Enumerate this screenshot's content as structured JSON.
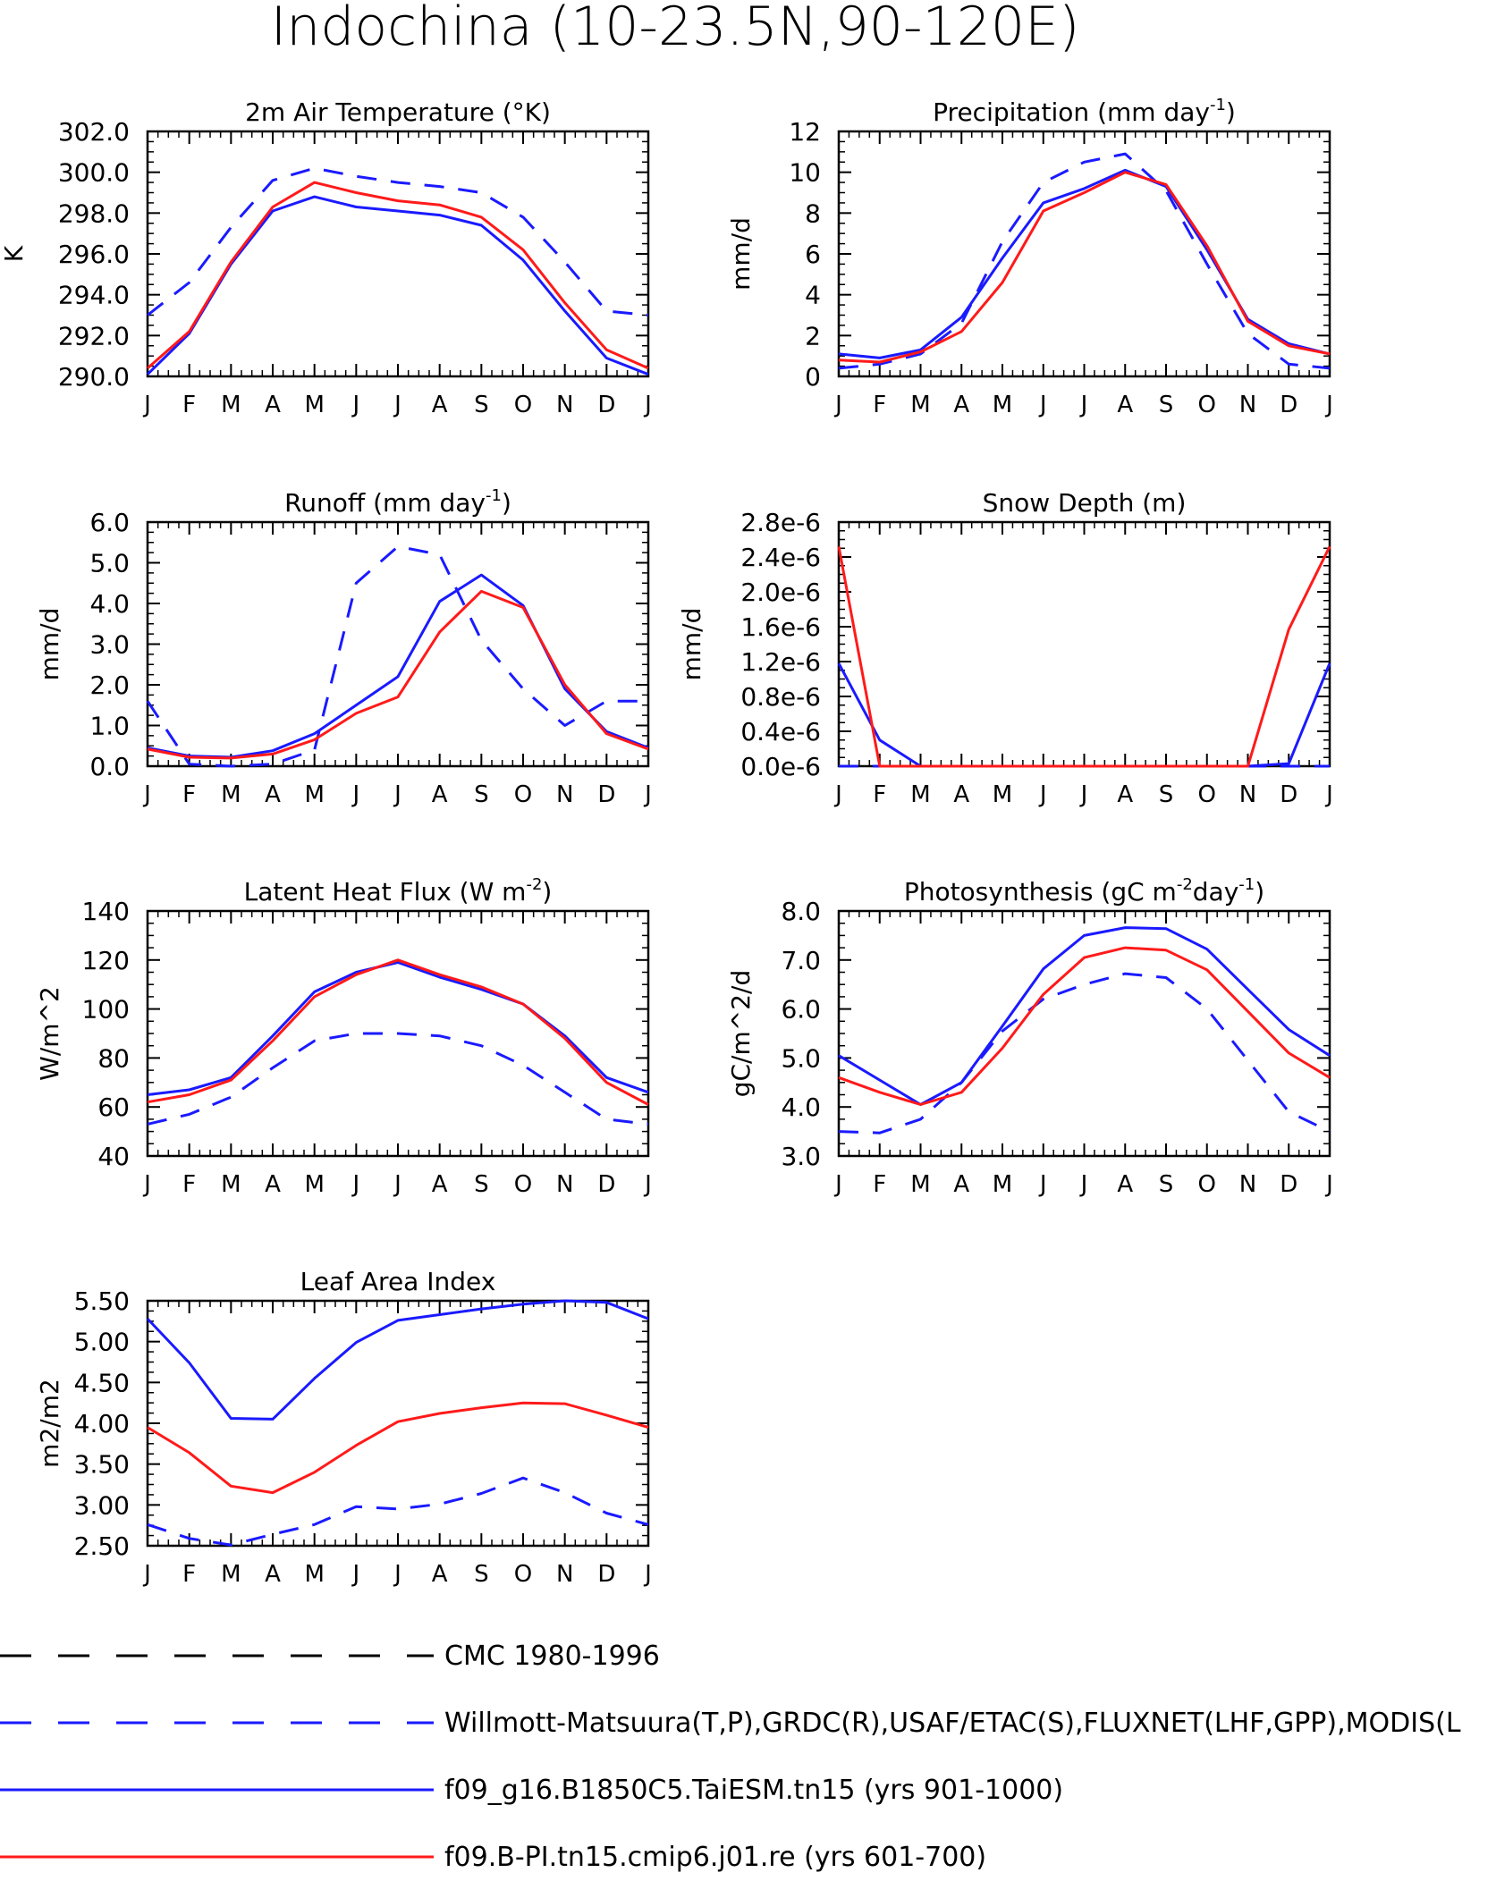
{
  "title": "Indochina (10-23.5N,90-120E)",
  "colors": {
    "observed": "#1a1aff",
    "model_taiesm": "#1a1aff",
    "model_cmip6": "#ff1a1a",
    "cmc": "#000000"
  },
  "months": [
    "J",
    "F",
    "M",
    "A",
    "M",
    "J",
    "J",
    "A",
    "S",
    "O",
    "N",
    "D",
    "J"
  ],
  "legend": [
    {
      "label": "CMC 1980-1996",
      "color": "#000000",
      "style": "dashed"
    },
    {
      "label": "Willmott-Matsuura(T,P),GRDC(R),USAF/ETAC(S),FLUXNET(LHF,GPP),MODIS(L",
      "color": "#1a1aff",
      "style": "dashed"
    },
    {
      "label": "f09_g16.B1850C5.TaiESM.tn15 (yrs 901-1000)",
      "color": "#1a1aff",
      "style": "solid"
    },
    {
      "label": "f09.B-PI.tn15.cmip6.j01.re (yrs 601-700)",
      "color": "#ff1a1a",
      "style": "solid"
    }
  ],
  "chart_data": [
    {
      "type": "line",
      "title": "2m Air Temperature (°K)",
      "ylabel": "K",
      "ylim": [
        290,
        302
      ],
      "yticks": [
        "290.0",
        "292.0",
        "294.0",
        "296.0",
        "298.0",
        "300.0",
        "302.0"
      ],
      "categories": [
        "J",
        "F",
        "M",
        "A",
        "M",
        "J",
        "J",
        "A",
        "S",
        "O",
        "N",
        "D",
        "J"
      ],
      "series": [
        {
          "name": "Willmott-Matsuura(T,P),GRDC(R),USAF/ETAC(S),FLUXNET(LHF,GPP),MODIS(L",
          "color": "#1a1aff",
          "style": "dashed",
          "values": [
            293.0,
            294.6,
            297.3,
            299.6,
            300.2,
            299.8,
            299.5,
            299.3,
            299.0,
            297.8,
            295.6,
            293.2,
            293.0
          ]
        },
        {
          "name": "f09_g16.B1850C5.TaiESM.tn15 (yrs 901-1000)",
          "color": "#1a1aff",
          "style": "solid",
          "values": [
            290.1,
            292.1,
            295.5,
            298.1,
            298.8,
            298.3,
            298.1,
            297.9,
            297.4,
            295.7,
            293.2,
            290.9,
            290.1
          ]
        },
        {
          "name": "f09.B-PI.tn15.cmip6.j01.re (yrs 601-700)",
          "color": "#ff1a1a",
          "style": "solid",
          "values": [
            290.4,
            292.2,
            295.6,
            298.3,
            299.5,
            299.0,
            298.6,
            298.4,
            297.8,
            296.2,
            293.6,
            291.3,
            290.4
          ]
        }
      ]
    },
    {
      "type": "line",
      "title": "Precipitation (mm day",
      "title_sup": "-1",
      "title_tail": ")",
      "ylabel": "mm/d",
      "ylim": [
        0,
        12
      ],
      "yticks": [
        "0",
        "2",
        "4",
        "6",
        "8",
        "10",
        "12"
      ],
      "categories": [
        "J",
        "F",
        "M",
        "A",
        "M",
        "J",
        "J",
        "A",
        "S",
        "O",
        "N",
        "D",
        "J"
      ],
      "series": [
        {
          "name": "Willmott-Matsuura(T,P),GRDC(R),USAF/ETAC(S),FLUXNET(LHF,GPP),MODIS(L",
          "color": "#1a1aff",
          "style": "dashed",
          "values": [
            0.4,
            0.6,
            1.1,
            2.6,
            6.6,
            9.5,
            10.5,
            10.9,
            9.1,
            5.5,
            2.1,
            0.6,
            0.4
          ]
        },
        {
          "name": "f09_g16.B1850C5.TaiESM.tn15 (yrs 901-1000)",
          "color": "#1a1aff",
          "style": "solid",
          "values": [
            1.1,
            0.9,
            1.3,
            2.9,
            5.8,
            8.5,
            9.2,
            10.1,
            9.3,
            6.2,
            2.8,
            1.6,
            1.1
          ]
        },
        {
          "name": "f09.B-PI.tn15.cmip6.j01.re (yrs 601-700)",
          "color": "#ff1a1a",
          "style": "solid",
          "values": [
            0.8,
            0.7,
            1.2,
            2.2,
            4.6,
            8.1,
            9.0,
            10.0,
            9.4,
            6.4,
            2.7,
            1.5,
            1.1
          ]
        }
      ]
    },
    {
      "type": "line",
      "title": "Runoff (mm day",
      "title_sup": "-1",
      "title_tail": ")",
      "ylabel": "mm/d",
      "ylim": [
        0,
        6
      ],
      "yticks": [
        "0.0",
        "1.0",
        "2.0",
        "3.0",
        "4.0",
        "5.0",
        "6.0"
      ],
      "categories": [
        "J",
        "F",
        "M",
        "A",
        "M",
        "J",
        "J",
        "A",
        "S",
        "O",
        "N",
        "D",
        "J"
      ],
      "series": [
        {
          "name": "Willmott-Matsuura(T,P),GRDC(R),USAF/ETAC(S),FLUXNET(LHF,GPP),MODIS(L",
          "color": "#1a1aff",
          "style": "dashed",
          "values": [
            1.6,
            0.05,
            0.0,
            0.05,
            0.4,
            4.5,
            5.4,
            5.2,
            3.1,
            1.9,
            1.0,
            1.6,
            1.6
          ]
        },
        {
          "name": "f09_g16.B1850C5.TaiESM.tn15 (yrs 901-1000)",
          "color": "#1a1aff",
          "style": "solid",
          "values": [
            0.45,
            0.25,
            0.22,
            0.38,
            0.8,
            1.5,
            2.2,
            4.05,
            4.7,
            3.95,
            1.9,
            0.85,
            0.45
          ]
        },
        {
          "name": "f09.B-PI.tn15.cmip6.j01.re (yrs 601-700)",
          "color": "#ff1a1a",
          "style": "solid",
          "values": [
            0.42,
            0.22,
            0.2,
            0.3,
            0.65,
            1.3,
            1.7,
            3.3,
            4.3,
            3.9,
            2.0,
            0.8,
            0.42
          ]
        }
      ]
    },
    {
      "type": "line",
      "title": "Snow Depth (m)",
      "ylabel": "mm/d",
      "ylim": [
        0,
        2.8e-06
      ],
      "yticks": [
        "0.0e-6",
        "0.4e-6",
        "0.8e-6",
        "1.2e-6",
        "1.6e-6",
        "2.0e-6",
        "2.4e-6",
        "2.8e-6"
      ],
      "categories": [
        "J",
        "F",
        "M",
        "A",
        "M",
        "J",
        "J",
        "A",
        "S",
        "O",
        "N",
        "D",
        "J"
      ],
      "series": [
        {
          "name": "CMC 1980-1996",
          "color": "#000000",
          "style": "dashed",
          "values": [
            0,
            0,
            0,
            0,
            0,
            0,
            0,
            0,
            0,
            0,
            0,
            0,
            0
          ]
        },
        {
          "name": "Willmott-Matsuura(T,P),GRDC(R),USAF/ETAC(S),FLUXNET(LHF,GPP),MODIS(L",
          "color": "#1a1aff",
          "style": "dashed",
          "values": [
            0,
            0,
            0,
            0,
            0,
            0,
            0,
            0,
            0,
            0,
            0,
            0,
            0
          ]
        },
        {
          "name": "f09_g16.B1850C5.TaiESM.tn15 (yrs 901-1000)",
          "color": "#1a1aff",
          "style": "solid",
          "values": [
            1.18e-06,
            3e-07,
            0,
            0,
            0,
            0,
            0,
            0,
            0,
            0,
            0,
            3e-08,
            1.18e-06
          ]
        },
        {
          "name": "f09.B-PI.tn15.cmip6.j01.re (yrs 601-700)",
          "color": "#ff1a1a",
          "style": "solid",
          "values": [
            2.52e-06,
            0,
            0,
            0,
            0,
            0,
            0,
            0,
            0,
            0,
            0,
            1.57e-06,
            2.52e-06
          ]
        }
      ]
    },
    {
      "type": "line",
      "title": "Latent Heat Flux (W m",
      "title_sup": "-2",
      "title_tail": ")",
      "ylabel": "W/m^2",
      "ylim": [
        40,
        140
      ],
      "yticks": [
        "40",
        "60",
        "80",
        "100",
        "120",
        "140"
      ],
      "categories": [
        "J",
        "F",
        "M",
        "A",
        "M",
        "J",
        "J",
        "A",
        "S",
        "O",
        "N",
        "D",
        "J"
      ],
      "series": [
        {
          "name": "Willmott-Matsuura(T,P),GRDC(R),USAF/ETAC(S),FLUXNET(LHF,GPP),MODIS(L",
          "color": "#1a1aff",
          "style": "dashed",
          "values": [
            53,
            57,
            64,
            76,
            87,
            90,
            90,
            89,
            85,
            77,
            66,
            55,
            53
          ]
        },
        {
          "name": "f09_g16.B1850C5.TaiESM.tn15 (yrs 901-1000)",
          "color": "#1a1aff",
          "style": "solid",
          "values": [
            65,
            67,
            72,
            89,
            107,
            115,
            119,
            113,
            108,
            102,
            89,
            72,
            66
          ]
        },
        {
          "name": "f09.B-PI.tn15.cmip6.j01.re (yrs 601-700)",
          "color": "#ff1a1a",
          "style": "solid",
          "values": [
            62,
            65,
            71,
            87,
            105,
            114,
            120,
            114,
            109,
            102,
            88,
            70,
            61
          ]
        }
      ]
    },
    {
      "type": "line",
      "title": "Photosynthesis (gC m",
      "title_sup": "-2",
      "title_mid": "day",
      "title_sup2": "-1",
      "title_tail": ")",
      "ylabel": "gC/m^2/d",
      "ylim": [
        3,
        8
      ],
      "yticks": [
        "3.0",
        "4.0",
        "5.0",
        "6.0",
        "7.0",
        "8.0"
      ],
      "categories": [
        "J",
        "F",
        "M",
        "A",
        "M",
        "J",
        "J",
        "A",
        "S",
        "O",
        "N",
        "D",
        "J"
      ],
      "series": [
        {
          "name": "Willmott-Matsuura(T,P),GRDC(R),USAF/ETAC(S),FLUXNET(LHF,GPP),MODIS(L",
          "color": "#1a1aff",
          "style": "dashed",
          "values": [
            3.5,
            3.47,
            3.75,
            4.5,
            5.55,
            6.2,
            6.5,
            6.72,
            6.64,
            6.0,
            4.95,
            3.9,
            3.5
          ]
        },
        {
          "name": "f09_g16.B1850C5.TaiESM.tn15 (yrs 901-1000)",
          "color": "#1a1aff",
          "style": "solid",
          "values": [
            5.05,
            4.55,
            4.05,
            4.5,
            5.65,
            6.82,
            7.5,
            7.66,
            7.64,
            7.22,
            6.4,
            5.58,
            5.05
          ]
        },
        {
          "name": "f09.B-PI.tn15.cmip6.j01.re (yrs 601-700)",
          "color": "#ff1a1a",
          "style": "solid",
          "values": [
            4.6,
            4.3,
            4.05,
            4.3,
            5.2,
            6.3,
            7.05,
            7.25,
            7.2,
            6.8,
            5.95,
            5.1,
            4.6
          ]
        }
      ]
    },
    {
      "type": "line",
      "title": "Leaf Area Index",
      "ylabel": "m2/m2",
      "ylim": [
        2.5,
        5.5
      ],
      "yticks": [
        "2.50",
        "3.00",
        "3.50",
        "4.00",
        "4.50",
        "5.00",
        "5.50"
      ],
      "categories": [
        "J",
        "F",
        "M",
        "A",
        "M",
        "J",
        "J",
        "A",
        "S",
        "O",
        "N",
        "D",
        "J"
      ],
      "series": [
        {
          "name": "Willmott-Matsuura(T,P),GRDC(R),USAF/ETAC(S),FLUXNET(LHF,GPP),MODIS(L",
          "color": "#1a1aff",
          "style": "dashed",
          "values": [
            2.76,
            2.59,
            2.51,
            2.64,
            2.76,
            2.98,
            2.95,
            3.01,
            3.14,
            3.33,
            3.15,
            2.9,
            2.76
          ]
        },
        {
          "name": "f09_g16.B1850C5.TaiESM.tn15 (yrs 901-1000)",
          "color": "#1a1aff",
          "style": "solid",
          "values": [
            5.28,
            4.74,
            4.06,
            4.05,
            4.55,
            4.99,
            5.26,
            5.33,
            5.4,
            5.46,
            5.5,
            5.48,
            5.28
          ]
        },
        {
          "name": "f09.B-PI.tn15.cmip6.j01.re (yrs 601-700)",
          "color": "#ff1a1a",
          "style": "solid",
          "values": [
            3.95,
            3.64,
            3.23,
            3.15,
            3.4,
            3.73,
            4.02,
            4.12,
            4.19,
            4.25,
            4.24,
            4.1,
            3.95
          ]
        }
      ]
    }
  ]
}
